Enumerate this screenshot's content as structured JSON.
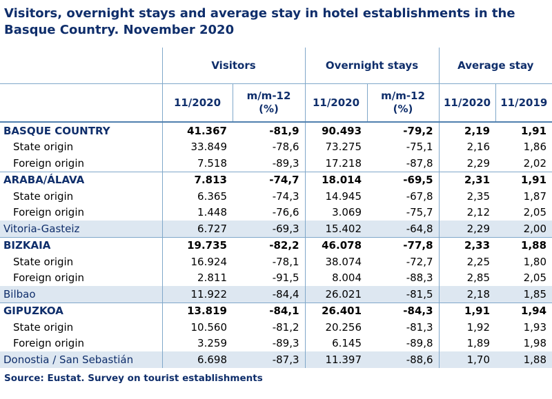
{
  "title_line1": "Visitors, overnight stays and average stay in hotel establishments in the",
  "title_line2": "Basque Country.  November 2020",
  "headers": {
    "visitors": "Visitors",
    "overnight": "Overnight stays",
    "average": "Average stay",
    "col_11_2020": "11/2020",
    "col_mm12_a": "m/m-12",
    "col_mm12_b": "(%)",
    "col_11_2019": "11/2019"
  },
  "rows": [
    {
      "label": "BASQUE COUNTRY",
      "v": "41.367",
      "vp": "-81,9",
      "o": "90.493",
      "op": "-79,2",
      "a20": "2,19",
      "a19": "1,91"
    },
    {
      "label": "State origin",
      "v": "33.849",
      "vp": "-78,6",
      "o": "73.275",
      "op": "-75,1",
      "a20": "2,16",
      "a19": "1,86"
    },
    {
      "label": "Foreign origin",
      "v": "7.518",
      "vp": "-89,3",
      "o": "17.218",
      "op": "-87,8",
      "a20": "2,29",
      "a19": "2,02"
    },
    {
      "label": "ARABA/ÁLAVA",
      "v": "7.813",
      "vp": "-74,7",
      "o": "18.014",
      "op": "-69,5",
      "a20": "2,31",
      "a19": "1,91"
    },
    {
      "label": "State origin",
      "v": "6.365",
      "vp": "-74,3",
      "o": "14.945",
      "op": "-67,8",
      "a20": "2,35",
      "a19": "1,87"
    },
    {
      "label": "Foreign origin",
      "v": "1.448",
      "vp": "-76,6",
      "o": "3.069",
      "op": "-75,7",
      "a20": "2,12",
      "a19": "2,05"
    },
    {
      "label": "Vitoria-Gasteiz",
      "v": "6.727",
      "vp": "-69,3",
      "o": "15.402",
      "op": "-64,8",
      "a20": "2,29",
      "a19": "2,00"
    },
    {
      "label": "BIZKAIA",
      "v": "19.735",
      "vp": "-82,2",
      "o": "46.078",
      "op": "-77,8",
      "a20": "2,33",
      "a19": "1,88"
    },
    {
      "label": "State origin",
      "v": "16.924",
      "vp": "-78,1",
      "o": "38.074",
      "op": "-72,7",
      "a20": "2,25",
      "a19": "1,80"
    },
    {
      "label": "Foreign origin",
      "v": "2.811",
      "vp": "-91,5",
      "o": "8.004",
      "op": "-88,3",
      "a20": "2,85",
      "a19": "2,05"
    },
    {
      "label": "Bilbao",
      "v": "11.922",
      "vp": "-84,4",
      "o": "26.021",
      "op": "-81,5",
      "a20": "2,18",
      "a19": "1,85"
    },
    {
      "label": "GIPUZKOA",
      "v": "13.819",
      "vp": "-84,1",
      "o": "26.401",
      "op": "-84,3",
      "a20": "1,91",
      "a19": "1,94"
    },
    {
      "label": "State origin",
      "v": "10.560",
      "vp": "-81,2",
      "o": "20.256",
      "op": "-81,3",
      "a20": "1,92",
      "a19": "1,93"
    },
    {
      "label": "Foreign origin",
      "v": "3.259",
      "vp": "-89,3",
      "o": "6.145",
      "op": "-89,8",
      "a20": "1,89",
      "a19": "1,98"
    },
    {
      "label": "Donostia / San Sebastián",
      "v": "6.698",
      "vp": "-87,3",
      "o": "11.397",
      "op": "-88,6",
      "a20": "1,70",
      "a19": "1,88"
    }
  ],
  "source": "Source: Eustat. Survey on tourist establishments",
  "colors": {
    "title": "#0f2e6b",
    "city_band": "#dde7f1",
    "rule": "#7fa7c9"
  }
}
